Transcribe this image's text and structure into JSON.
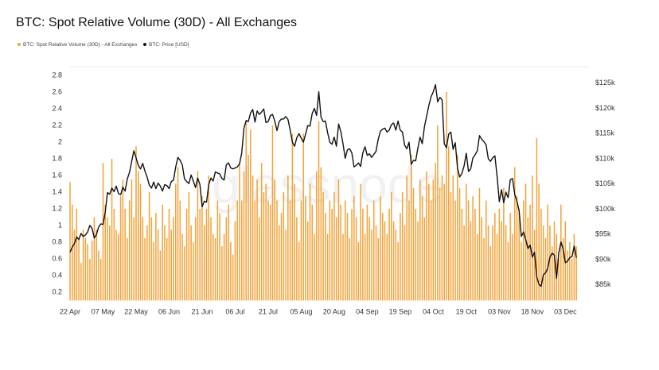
{
  "chart_data": {
    "type": "bar-line",
    "title": "BTC: Spot Relative Volume (30D) - All Exchanges",
    "watermark": "glassnode",
    "categories": [
      "22 Apr",
      null,
      null,
      null,
      null,
      null,
      null,
      null,
      null,
      null,
      null,
      null,
      null,
      null,
      null,
      "07 May",
      null,
      null,
      null,
      null,
      null,
      null,
      null,
      null,
      null,
      null,
      null,
      null,
      null,
      null,
      "22 May",
      null,
      null,
      null,
      null,
      null,
      null,
      null,
      null,
      null,
      null,
      null,
      null,
      null,
      null,
      "06 Jun",
      null,
      null,
      null,
      null,
      null,
      null,
      null,
      null,
      null,
      null,
      null,
      null,
      null,
      null,
      "21 Jun",
      null,
      null,
      null,
      null,
      null,
      null,
      null,
      null,
      null,
      null,
      null,
      null,
      null,
      null,
      "06 Jul",
      null,
      null,
      null,
      null,
      null,
      null,
      null,
      null,
      null,
      null,
      null,
      null,
      null,
      null,
      "21 Jul",
      null,
      null,
      null,
      null,
      null,
      null,
      null,
      null,
      null,
      null,
      null,
      null,
      null,
      null,
      "05 Aug",
      null,
      null,
      null,
      null,
      null,
      null,
      null,
      null,
      null,
      null,
      null,
      null,
      null,
      null,
      "20 Aug",
      null,
      null,
      null,
      null,
      null,
      null,
      null,
      null,
      null,
      null,
      null,
      null,
      null,
      null,
      "04 Sep",
      null,
      null,
      null,
      null,
      null,
      null,
      null,
      null,
      null,
      null,
      null,
      null,
      null,
      null,
      "19 Sep",
      null,
      null,
      null,
      null,
      null,
      null,
      null,
      null,
      null,
      null,
      null,
      null,
      null,
      null,
      "04 Oct",
      null,
      null,
      null,
      null,
      null,
      null,
      null,
      null,
      null,
      null,
      null,
      null,
      null,
      null,
      "19 Oct",
      null,
      null,
      null,
      null,
      null,
      null,
      null,
      null,
      null,
      null,
      null,
      null,
      null,
      null,
      "03 Nov",
      null,
      null,
      null,
      null,
      null,
      null,
      null,
      null,
      null,
      null,
      null,
      null,
      null,
      null,
      "18 Nov",
      null,
      null,
      null,
      null,
      null,
      null,
      null,
      null,
      null,
      null,
      null,
      null,
      null,
      null,
      "03 Dec",
      null,
      null,
      null,
      null,
      null
    ],
    "series": [
      {
        "name": "BTC: Spot Relative Volume (30D) - All Exchanges",
        "color": "#f2a33a",
        "values": [
          1.52,
          1.25,
          0.95,
          1.2,
          0.85,
          0.55,
          0.95,
          0.85,
          0.78,
          0.6,
          0.82,
          1.1,
          0.95,
          0.7,
          0.6,
          1.75,
          1.25,
          1.1,
          1.0,
          1.8,
          1.2,
          0.95,
          0.9,
          1.35,
          1.55,
          1.2,
          0.85,
          1.3,
          1.55,
          1.1,
          1.95,
          1.65,
          1.5,
          1.1,
          0.85,
          1.0,
          1.4,
          1.1,
          0.8,
          1.15,
          0.95,
          0.7,
          1.25,
          1.0,
          0.85,
          1.2,
          0.95,
          1.1,
          1.5,
          1.7,
          1.3,
          0.9,
          0.75,
          1.2,
          1.4,
          1.0,
          0.8,
          1.1,
          1.65,
          1.2,
          1.35,
          1.0,
          1.2,
          1.6,
          1.1,
          0.9,
          0.85,
          1.3,
          1.15,
          0.75,
          0.9,
          1.1,
          1.25,
          0.8,
          0.65,
          1.05,
          1.3,
          1.75,
          1.3,
          1.65,
          2.25,
          1.85,
          2.15,
          1.6,
          1.3,
          1.55,
          1.1,
          1.75,
          1.4,
          1.5,
          1.3,
          1.25,
          2.2,
          1.55,
          1.3,
          1.0,
          1.15,
          1.4,
          0.95,
          1.6,
          1.3,
          2.1,
          1.5,
          1.1,
          0.8,
          1.3,
          2.1,
          1.35,
          1.05,
          1.5,
          1.25,
          0.9,
          1.65,
          2.25,
          1.7,
          1.4,
          1.15,
          0.9,
          1.3,
          1.2,
          1.4,
          1.1,
          1.55,
          1.25,
          0.9,
          1.3,
          1.15,
          0.85,
          1.2,
          1.35,
          1.1,
          0.8,
          1.5,
          1.2,
          0.9,
          1.25,
          1.1,
          0.95,
          1.3,
          1.0,
          0.85,
          1.35,
          1.15,
          1.05,
          0.9,
          1.2,
          1.4,
          1.05,
          0.95,
          0.8,
          1.15,
          1.4,
          1.0,
          1.6,
          1.3,
          1.85,
          1.45,
          1.2,
          1.05,
          1.55,
          1.35,
          1.1,
          1.65,
          1.5,
          1.3,
          1.55,
          1.75,
          2.2,
          1.45,
          1.6,
          1.5,
          2.6,
          1.95,
          1.4,
          1.6,
          1.3,
          1.85,
          1.45,
          1.2,
          1.0,
          1.5,
          1.3,
          1.05,
          1.35,
          1.2,
          0.9,
          1.45,
          1.1,
          0.85,
          1.3,
          1.0,
          0.75,
          1.0,
          1.15,
          0.9,
          1.2,
          1.05,
          1.45,
          1.0,
          0.8,
          1.15,
          0.9,
          1.7,
          1.35,
          1.2,
          0.8,
          1.3,
          1.5,
          1.1,
          1.25,
          1.6,
          0.95,
          2.05,
          1.5,
          1.2,
          1.0,
          0.85,
          1.25,
          1.0,
          0.75,
          1.05,
          0.9,
          0.6,
          1.25,
          0.85,
          1.05,
          0.7,
          0.8,
          0.6,
          0.9,
          0.75
        ]
      },
      {
        "name": "BTC: Price [USD]",
        "color": "#111111",
        "axis": "y2",
        "values": [
          91500,
          92500,
          93200,
          94500,
          94000,
          95200,
          94600,
          94900,
          95500,
          96800,
          96200,
          94300,
          95000,
          96500,
          97100,
          97000,
          99500,
          103300,
          103000,
          104200,
          103500,
          104600,
          103100,
          102900,
          104400,
          103600,
          106000,
          107300,
          109500,
          111600,
          110200,
          108700,
          108000,
          109100,
          107600,
          106400,
          104800,
          104200,
          105400,
          104100,
          105200,
          104600,
          103600,
          104900,
          104700,
          104100,
          105500,
          105800,
          108400,
          110300,
          109700,
          108800,
          106000,
          105500,
          105100,
          106800,
          105600,
          104300,
          106200,
          104900,
          100500,
          101600,
          101400,
          104900,
          106200,
          105600,
          107400,
          107200,
          107000,
          106100,
          105800,
          108800,
          109200,
          108200,
          108000,
          108200,
          108400,
          109000,
          111200,
          116100,
          117600,
          117400,
          119100,
          119800,
          117300,
          119500,
          118800,
          119300,
          119900,
          117200,
          117400,
          118600,
          118800,
          117500,
          115600,
          117400,
          117900,
          117900,
          118400,
          117800,
          115700,
          113300,
          112500,
          114200,
          115000,
          114100,
          113300,
          114900,
          116600,
          116500,
          119000,
          120000,
          118600,
          123300,
          118300,
          117400,
          117500,
          115200,
          113300,
          112900,
          114300,
          112500,
          116900,
          115400,
          113000,
          110100,
          111800,
          112000,
          111200,
          108400,
          108700,
          109200,
          108500,
          111200,
          112400,
          110700,
          111000,
          110300,
          110900,
          111500,
          113900,
          115500,
          115900,
          116100,
          115300,
          115700,
          116800,
          117100,
          115700,
          117500,
          115700,
          115300,
          112700,
          112000,
          113300,
          108900,
          109700,
          109600,
          112100,
          114300,
          113000,
          116400,
          118500,
          120600,
          122300,
          123300,
          124700,
          121300,
          122200,
          121700,
          113000,
          112200,
          114900,
          115300,
          111900,
          113200,
          108200,
          106400,
          107100,
          108600,
          111100,
          107500,
          108000,
          110200,
          110800,
          111600,
          114600,
          113900,
          113400,
          112800,
          110000,
          109500,
          110200,
          110600,
          106500,
          101500,
          103900,
          101300,
          103400,
          102300,
          105900,
          106100,
          103000,
          101600,
          99700,
          94600,
          95500,
          94000,
          92200,
          92900,
          90500,
          91500,
          86600,
          85100,
          84700,
          87000,
          87400,
          88300,
          90500,
          91300,
          90900,
          86300,
          91300,
          93500,
          92100,
          89400,
          89700,
          90400,
          90600,
          92700,
          90400
        ]
      }
    ],
    "ylim": [
      0.1,
      2.9
    ],
    "yticks": [
      0.2,
      0.4,
      0.6,
      0.8,
      1,
      1.2,
      1.4,
      1.6,
      1.8,
      2,
      2.2,
      2.4,
      2.6,
      2.8
    ],
    "y2lim": [
      81900,
      128200
    ],
    "y2ticks": [
      {
        "value": 85000,
        "label": "$85k"
      },
      {
        "value": 90000,
        "label": "$90k"
      },
      {
        "value": 95000,
        "label": "$95k"
      },
      {
        "value": 100000,
        "label": "$100k"
      },
      {
        "value": 105000,
        "label": "$105k"
      },
      {
        "value": 110000,
        "label": "$110k"
      },
      {
        "value": 115000,
        "label": "$115k"
      },
      {
        "value": 120000,
        "label": "$120k"
      },
      {
        "value": 125000,
        "label": "$125k"
      }
    ],
    "legend": "top-left"
  }
}
